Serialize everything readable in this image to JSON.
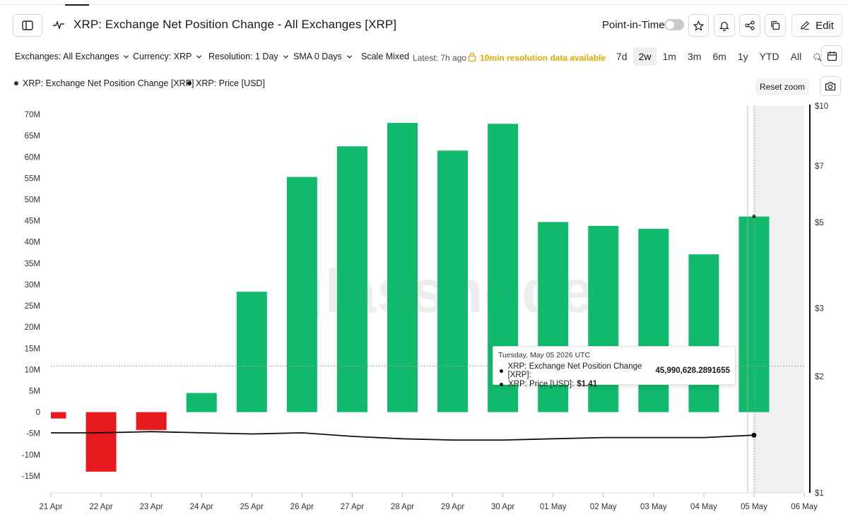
{
  "header": {
    "title": "XRP: Exchange Net Position Change - All Exchanges [XRP]",
    "point_in_time_label": "Point-in-Time",
    "edit_label": "Edit"
  },
  "toolbar": {
    "exchanges": "Exchanges: All Exchanges",
    "currency": "Currency: XRP",
    "resolution": "Resolution: 1 Day",
    "sma": "SMA 0 Days",
    "scale": "Scale Mixed",
    "latest": "Latest: 7h ago",
    "tenmin": "10min resolution data available",
    "ranges": [
      "7d",
      "2w",
      "1m",
      "3m",
      "6m",
      "1y",
      "YTD",
      "All"
    ],
    "active_range": "2w"
  },
  "legend": {
    "series1": "XRP: Exchange Net Position Change [XRP]",
    "series2": "XRP: Price [USD]",
    "reset_zoom": "Reset zoom"
  },
  "watermark": "glassnode",
  "tooltip": {
    "date": "Tuesday, May 05 2026 UTC",
    "row1_label": "XRP: Exchange Net Position Change [XRP]:",
    "row1_value": "45,990,628.2891655",
    "row2_label": "XRP: Price [USD]:",
    "row2_value": "$1.41"
  },
  "colors": {
    "positive": "#10b96b",
    "negative": "#e8191c",
    "price_line": "#111111",
    "warning": "#e0a800"
  },
  "chart_data": {
    "type": "bar",
    "categories": [
      "21 Apr",
      "22 Apr",
      "23 Apr",
      "24 Apr",
      "25 Apr",
      "26 Apr",
      "27 Apr",
      "28 Apr",
      "29 Apr",
      "30 Apr",
      "01 May",
      "02 May",
      "03 May",
      "04 May",
      "05 May",
      "06 May"
    ],
    "series": [
      {
        "name": "XRP: Exchange Net Position Change [XRP]",
        "type": "bar",
        "axis": "left",
        "values": [
          -1.5,
          -14,
          -4.2,
          4.5,
          28.3,
          55.3,
          62.5,
          68,
          61.5,
          67.8,
          44.7,
          43.8,
          43.1,
          37.1,
          45.99,
          null
        ]
      },
      {
        "name": "XRP: Price [USD]",
        "type": "line",
        "axis": "right",
        "values": [
          1.43,
          1.43,
          1.44,
          1.43,
          1.42,
          1.43,
          1.4,
          1.38,
          1.37,
          1.37,
          1.38,
          1.39,
          1.39,
          1.39,
          1.41,
          null
        ]
      }
    ],
    "y_left": {
      "unit": "M",
      "ylim": [
        -19,
        72
      ],
      "ticks": [
        70,
        65,
        60,
        55,
        50,
        45,
        40,
        35,
        30,
        25,
        20,
        15,
        10,
        5,
        0,
        -5,
        -10,
        -15
      ],
      "tick_labels": [
        "70M",
        "65M",
        "60M",
        "55M",
        "50M",
        "45M",
        "40M",
        "35M",
        "30M",
        "25M",
        "20M",
        "15M",
        "10M",
        "5M",
        "0",
        "-5M",
        "-10M",
        "-15M"
      ]
    },
    "y_right": {
      "scale": "log",
      "ylim": [
        1,
        10
      ],
      "ticks": [
        10,
        7,
        5,
        3,
        2,
        1
      ],
      "tick_labels": [
        "$10",
        "$7",
        "$5",
        "$3",
        "$2",
        "$1"
      ]
    },
    "grid": false,
    "legend_position": "top-left"
  }
}
